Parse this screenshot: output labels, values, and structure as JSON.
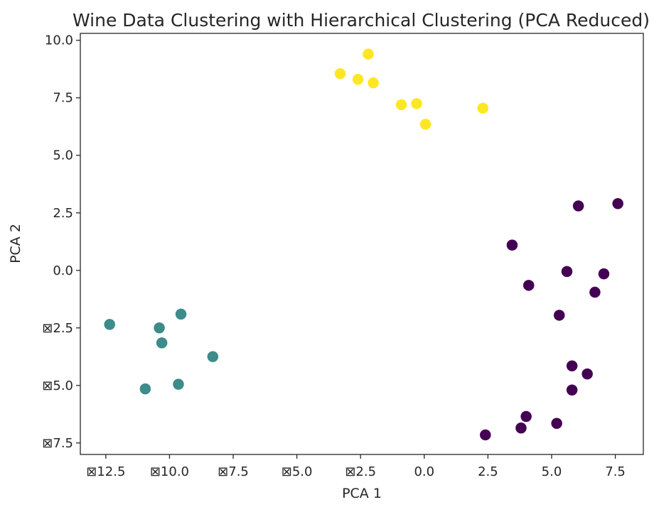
{
  "chart_data": {
    "type": "scatter",
    "title": "Wine Data Clustering with Hierarchical Clustering (PCA Reduced)",
    "xlabel": "PCA 1",
    "ylabel": "PCA 2",
    "xlim": [
      -13.5,
      8.6
    ],
    "ylim": [
      -8.0,
      10.3
    ],
    "grid": false,
    "x_ticks": [
      {
        "value": -12.5,
        "label": "⊠12.5"
      },
      {
        "value": -10.0,
        "label": "⊠10.0"
      },
      {
        "value": -7.5,
        "label": "⊠7.5"
      },
      {
        "value": -5.0,
        "label": "⊠5.0"
      },
      {
        "value": -2.5,
        "label": "⊠2.5"
      },
      {
        "value": 0.0,
        "label": "0.0"
      },
      {
        "value": 2.5,
        "label": "2.5"
      },
      {
        "value": 5.0,
        "label": "5.0"
      },
      {
        "value": 7.5,
        "label": "7.5"
      }
    ],
    "y_ticks": [
      {
        "value": 10.0,
        "label": "10.0"
      },
      {
        "value": 7.5,
        "label": "7.5"
      },
      {
        "value": 5.0,
        "label": "5.0"
      },
      {
        "value": 2.5,
        "label": "2.5"
      },
      {
        "value": 0.0,
        "label": "0.0"
      },
      {
        "value": -2.5,
        "label": "⊠2.5"
      },
      {
        "value": -5.0,
        "label": "⊠5.0"
      },
      {
        "value": -7.5,
        "label": "⊠7.5"
      }
    ],
    "series": [
      {
        "color": "#fde725",
        "points": [
          [
            -2.2,
            9.4
          ],
          [
            -3.3,
            8.55
          ],
          [
            -2.6,
            8.3
          ],
          [
            -2.0,
            8.15
          ],
          [
            -0.9,
            7.2
          ],
          [
            -0.3,
            7.25
          ],
          [
            0.05,
            6.35
          ],
          [
            2.3,
            7.05
          ]
        ]
      },
      {
        "color": "#440154",
        "points": [
          [
            6.05,
            2.8
          ],
          [
            7.6,
            2.9
          ],
          [
            3.45,
            1.1
          ],
          [
            5.6,
            -0.05
          ],
          [
            7.05,
            -0.15
          ],
          [
            4.1,
            -0.65
          ],
          [
            6.7,
            -0.95
          ],
          [
            5.3,
            -1.95
          ],
          [
            5.8,
            -4.15
          ],
          [
            6.4,
            -4.5
          ],
          [
            5.8,
            -5.2
          ],
          [
            4.0,
            -6.35
          ],
          [
            5.2,
            -6.65
          ],
          [
            3.8,
            -6.85
          ],
          [
            2.4,
            -7.15
          ]
        ]
      },
      {
        "color": "#3d8b8a",
        "points": [
          [
            -12.35,
            -2.35
          ],
          [
            -9.55,
            -1.9
          ],
          [
            -10.4,
            -2.5
          ],
          [
            -10.3,
            -3.15
          ],
          [
            -8.3,
            -3.75
          ],
          [
            -10.95,
            -5.15
          ],
          [
            -9.65,
            -4.95
          ]
        ]
      }
    ]
  }
}
